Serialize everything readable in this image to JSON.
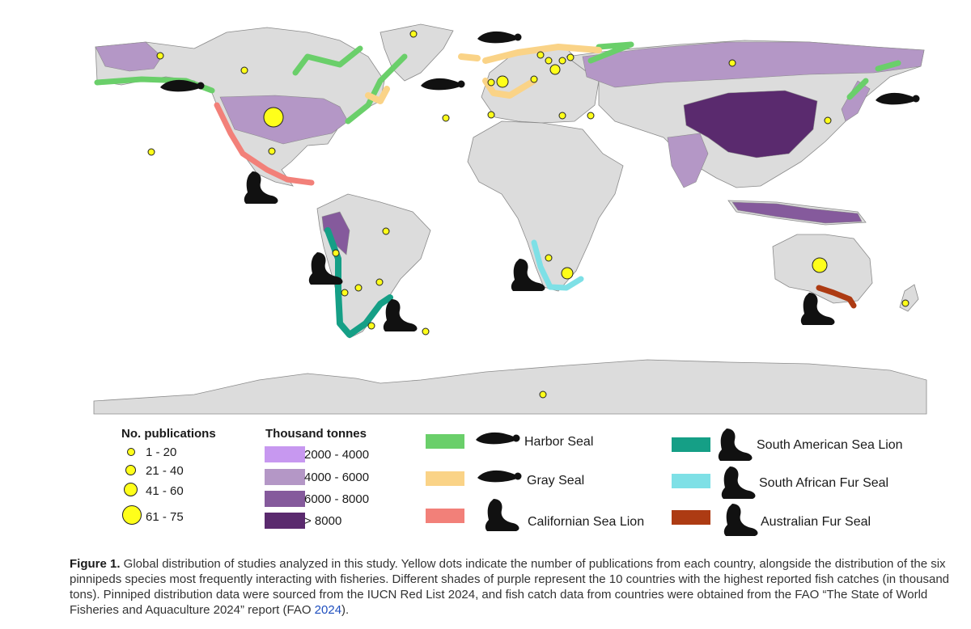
{
  "legend_publications": {
    "title": "No. publications",
    "items": [
      {
        "label": "1 - 20",
        "min": 1,
        "max": 20
      },
      {
        "label": "21 - 40",
        "min": 21,
        "max": 40
      },
      {
        "label": "41 - 60",
        "min": 41,
        "max": 60
      },
      {
        "label": "61 - 75",
        "min": 61,
        "max": 75
      }
    ]
  },
  "legend_catch": {
    "title": "Thousand tonnes",
    "items": [
      {
        "label": "2000 - 4000",
        "color": "#c798f0"
      },
      {
        "label": "4000 - 6000",
        "color": "#b497c6"
      },
      {
        "label": "6000 - 8000",
        "color": "#855a9c"
      },
      {
        "label": "> 8000",
        "color": "#5a2a6e"
      }
    ]
  },
  "species": [
    {
      "name": "Harbor Seal",
      "color": "#6acf6a",
      "icon": "seal-icon"
    },
    {
      "name": "Gray Seal",
      "color": "#fad387",
      "icon": "seal-icon"
    },
    {
      "name": "Californian Sea Lion",
      "color": "#f28079",
      "icon": "sea-lion-icon"
    },
    {
      "name": "South American Sea Lion",
      "color": "#159f86",
      "icon": "sea-lion-icon"
    },
    {
      "name": "South African Fur Seal",
      "color": "#7ee0e6",
      "icon": "fur-seal-icon"
    },
    {
      "name": "Australian Fur Seal",
      "color": "#ad3b13",
      "icon": "fur-seal-icon"
    }
  ],
  "map_colors": {
    "land": "#dcdcdc",
    "border": "#8a8a8a",
    "ocean": "#ffffff",
    "publication_dot": "#ffff1a"
  },
  "caption": {
    "label": "Figure 1.",
    "text": " Global distribution of studies analyzed in this study. Yellow dots indicate the number of publications from each country, alongside the distribution of the six pinnipeds species most frequently interacting with fisheries. Different shades of purple represent the 10 countries with the highest reported fish catches (in thousand tons). Pinniped distribution data were sourced from the IUCN Red List 2024, and fish catch data from countries were obtained from the FAO “The State of World Fisheries and Aquaculture 2024” report (FAO ",
    "link_text": "2024",
    "end": ")."
  }
}
